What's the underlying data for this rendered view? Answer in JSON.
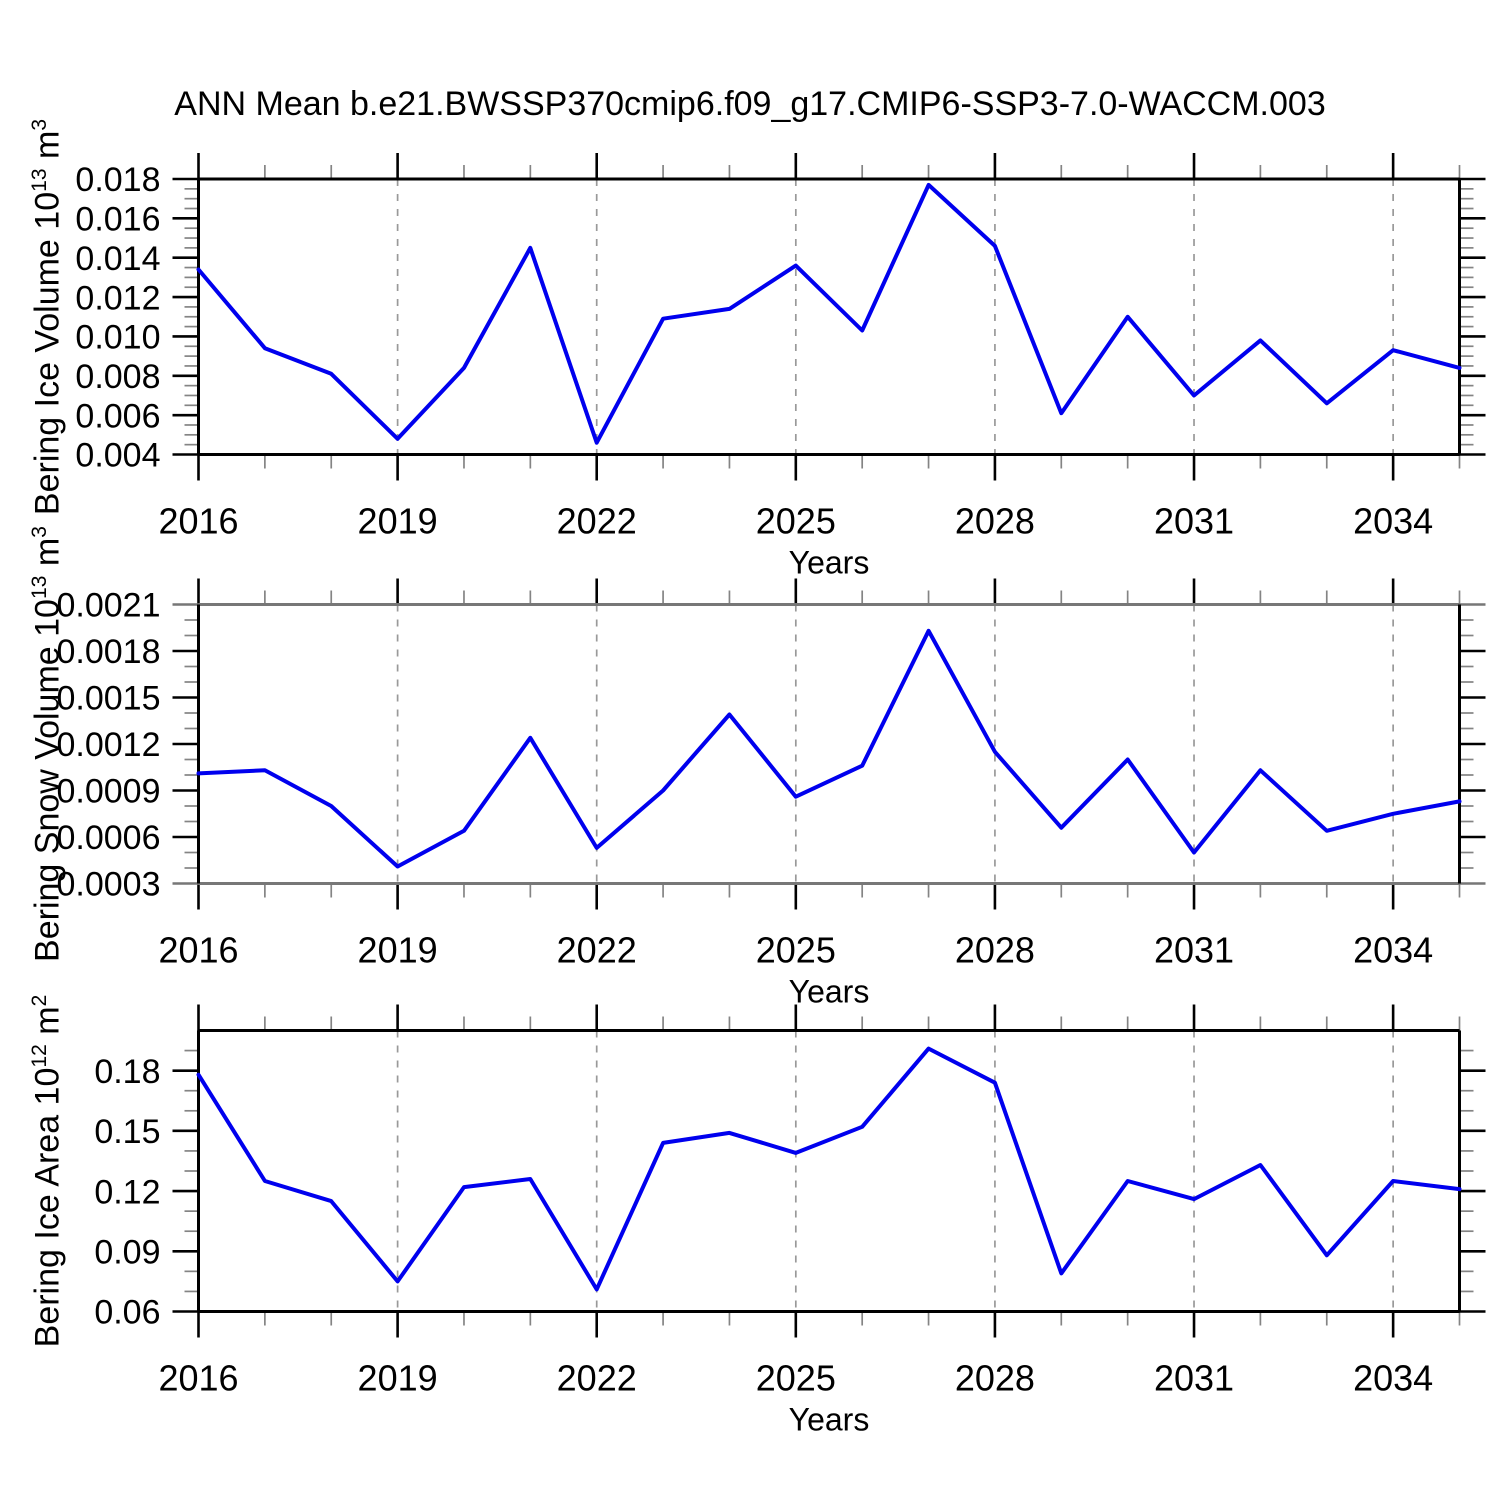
{
  "title": "ANN Mean b.e21.BWSSP370cmip6.f09_g17.CMIP6-SSP3-7.0-WACCM.003",
  "chart_data": [
    {
      "type": "line",
      "ylabel": "Bering Ice Volume 10^13 m^3",
      "ylabel_rich": {
        "base1": "Bering Ice Volume 10",
        "sup1": "13",
        "base2": " m",
        "sup2": "3"
      },
      "xlabel": "Years",
      "x": [
        2016,
        2017,
        2018,
        2019,
        2020,
        2021,
        2022,
        2023,
        2024,
        2025,
        2026,
        2027,
        2028,
        2029,
        2030,
        2031,
        2032,
        2033,
        2034,
        2035
      ],
      "values": [
        0.0134,
        0.0094,
        0.0081,
        0.0048,
        0.0084,
        0.0145,
        0.0046,
        0.0109,
        0.0114,
        0.0136,
        0.0103,
        0.0177,
        0.0146,
        0.0061,
        0.011,
        0.007,
        0.0098,
        0.0066,
        0.0093,
        0.0084
      ],
      "xlim": [
        2016,
        2035
      ],
      "ylim": [
        0.004,
        0.018
      ],
      "y_major_ticks": [
        0.004,
        0.006,
        0.008,
        0.01,
        0.012,
        0.014,
        0.016,
        0.018
      ],
      "y_tick_labels": [
        "0.004",
        "0.006",
        "0.008",
        "0.010",
        "0.012",
        "0.014",
        "0.016",
        "0.018"
      ],
      "y_minor_step": 0.0005,
      "x_major_ticks": [
        2016,
        2019,
        2022,
        2025,
        2028,
        2031,
        2034
      ],
      "x_tick_labels": [
        "2016",
        "2019",
        "2022",
        "2025",
        "2028",
        "2031",
        "2034"
      ],
      "x_minor_step": 1,
      "grid_x_dashed": [
        2019,
        2022,
        2025,
        2028,
        2031,
        2034
      ],
      "grid": "vertical-dashed",
      "legend": "none",
      "line_color": "#0000EE"
    },
    {
      "type": "line",
      "ylabel": "Bering Snow Volume 10^13 m^3",
      "ylabel_rich": {
        "base1": "Bering Snow Volume 10",
        "sup1": "13",
        "base2": " m",
        "sup2": "3"
      },
      "xlabel": "Years",
      "x": [
        2016,
        2017,
        2018,
        2019,
        2020,
        2021,
        2022,
        2023,
        2024,
        2025,
        2026,
        2027,
        2028,
        2029,
        2030,
        2031,
        2032,
        2033,
        2034,
        2035
      ],
      "values": [
        0.00101,
        0.00103,
        0.0008,
        0.00041,
        0.00064,
        0.00124,
        0.00053,
        0.0009,
        0.00139,
        0.00086,
        0.00106,
        0.00193,
        0.00115,
        0.00066,
        0.0011,
        0.0005,
        0.00103,
        0.00064,
        0.00075,
        0.00083
      ],
      "xlim": [
        2016,
        2035
      ],
      "ylim": [
        0.0003,
        0.0021
      ],
      "y_major_ticks": [
        0.0003,
        0.0006,
        0.0009,
        0.0012,
        0.0015,
        0.0018,
        0.0021
      ],
      "y_tick_labels": [
        "0.0003",
        "0.0006",
        "0.0009",
        "0.0012",
        "0.0015",
        "0.0018",
        "0.0021"
      ],
      "y_minor_step": 0.0001,
      "x_major_ticks": [
        2016,
        2019,
        2022,
        2025,
        2028,
        2031,
        2034
      ],
      "x_tick_labels": [
        "2016",
        "2019",
        "2022",
        "2025",
        "2028",
        "2031",
        "2034"
      ],
      "x_minor_step": 1,
      "grid_x_dashed": [
        2019,
        2022,
        2025,
        2028,
        2031,
        2034
      ],
      "grid": "vertical-dashed",
      "legend": "none",
      "line_color": "#0000EE"
    },
    {
      "type": "line",
      "ylabel": "Bering Ice Area 10^12 m^2",
      "ylabel_rich": {
        "base1": "Bering Ice Area 10",
        "sup1": "12",
        "base2": " m",
        "sup2": "2"
      },
      "xlabel": "Years",
      "x": [
        2016,
        2017,
        2018,
        2019,
        2020,
        2021,
        2022,
        2023,
        2024,
        2025,
        2026,
        2027,
        2028,
        2029,
        2030,
        2031,
        2032,
        2033,
        2034,
        2035
      ],
      "values": [
        0.178,
        0.125,
        0.115,
        0.075,
        0.122,
        0.126,
        0.071,
        0.144,
        0.149,
        0.139,
        0.152,
        0.191,
        0.174,
        0.079,
        0.125,
        0.116,
        0.133,
        0.088,
        0.125,
        0.121
      ],
      "xlim": [
        2016,
        2035
      ],
      "ylim": [
        0.06,
        0.2
      ],
      "y_major_ticks": [
        0.06,
        0.09,
        0.12,
        0.15,
        0.18
      ],
      "y_tick_labels": [
        "0.06",
        "0.09",
        "0.12",
        "0.15",
        "0.18"
      ],
      "y_minor_step": 0.01,
      "x_major_ticks": [
        2016,
        2019,
        2022,
        2025,
        2028,
        2031,
        2034
      ],
      "x_tick_labels": [
        "2016",
        "2019",
        "2022",
        "2025",
        "2028",
        "2031",
        "2034"
      ],
      "x_minor_step": 1,
      "grid_x_dashed": [
        2019,
        2022,
        2025,
        2028,
        2031,
        2034
      ],
      "grid": "vertical-dashed",
      "legend": "none",
      "line_color": "#0000EE"
    }
  ]
}
